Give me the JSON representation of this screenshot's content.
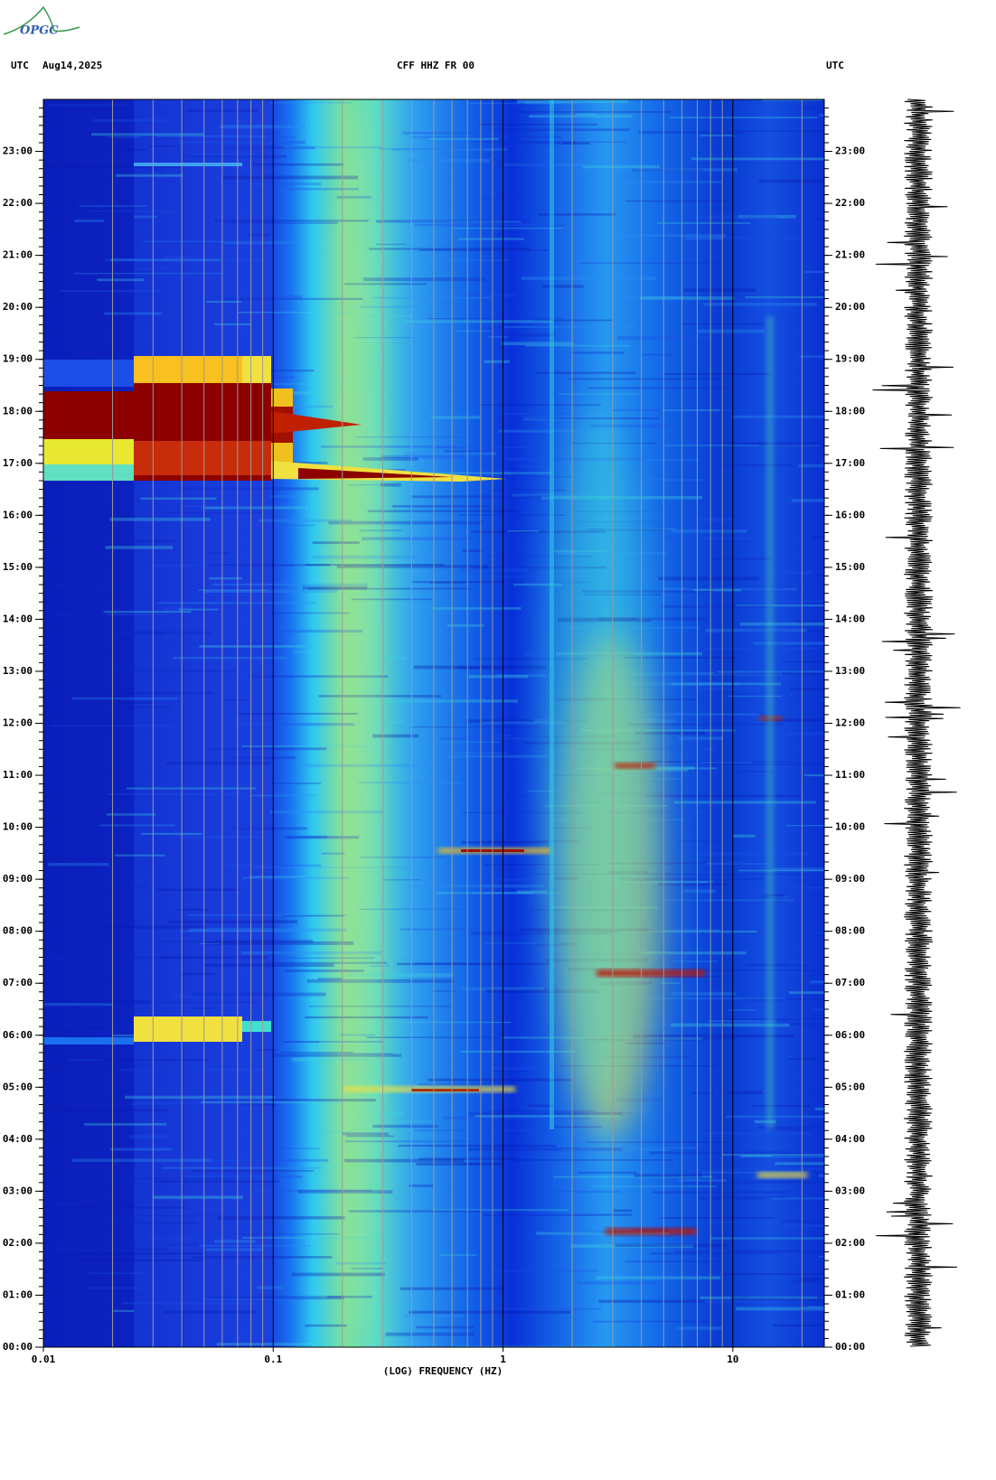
{
  "logo": "OPGC",
  "chart_data": {
    "type": "spectrogram",
    "title": "CFF HHZ FR 00",
    "left_label": "UTC",
    "date": "Aug14,2025",
    "right_label": "UTC",
    "x_label": "(LOG) FREQUENCY (HZ)",
    "x_scale": "log",
    "xlim": [
      0.01,
      25
    ],
    "xticks": [
      0.01,
      0.1,
      1,
      10
    ],
    "ylim": [
      0,
      24
    ],
    "yticks": [
      {
        "value": 0,
        "label": "00:00"
      },
      {
        "value": 1,
        "label": "01:00"
      },
      {
        "value": 2,
        "label": "02:00"
      },
      {
        "value": 3,
        "label": "03:00"
      },
      {
        "value": 4,
        "label": "04:00"
      },
      {
        "value": 5,
        "label": "05:00"
      },
      {
        "value": 6,
        "label": "06:00"
      },
      {
        "value": 7,
        "label": "07:00"
      },
      {
        "value": 8,
        "label": "08:00"
      },
      {
        "value": 9,
        "label": "09:00"
      },
      {
        "value": 10,
        "label": "10:00"
      },
      {
        "value": 11,
        "label": "11:00"
      },
      {
        "value": 12,
        "label": "12:00"
      },
      {
        "value": 13,
        "label": "13:00"
      },
      {
        "value": 14,
        "label": "14:00"
      },
      {
        "value": 15,
        "label": "15:00"
      },
      {
        "value": 16,
        "label": "16:00"
      },
      {
        "value": 17,
        "label": "17:00"
      },
      {
        "value": 18,
        "label": "18:00"
      },
      {
        "value": 19,
        "label": "19:00"
      },
      {
        "value": 20,
        "label": "20:00"
      },
      {
        "value": 21,
        "label": "21:00"
      },
      {
        "value": 22,
        "label": "22:00"
      },
      {
        "value": 23,
        "label": "23:00"
      }
    ]
  }
}
